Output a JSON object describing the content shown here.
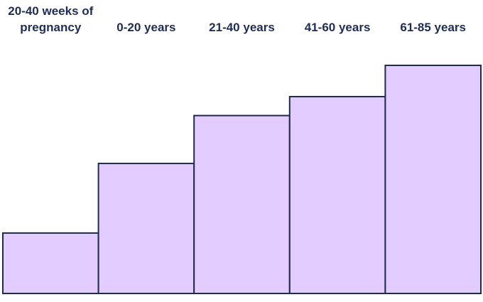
{
  "chart_data": {
    "type": "bar",
    "categories": [
      "20-40 weeks of pregnancy",
      "0-20 years",
      "21-40 years",
      "41-60 years",
      "61-85 years"
    ],
    "values": [
      26.5,
      57,
      78,
      86.3,
      100
    ],
    "color": "#e3ccff",
    "ylim": [
      0,
      100
    ]
  }
}
